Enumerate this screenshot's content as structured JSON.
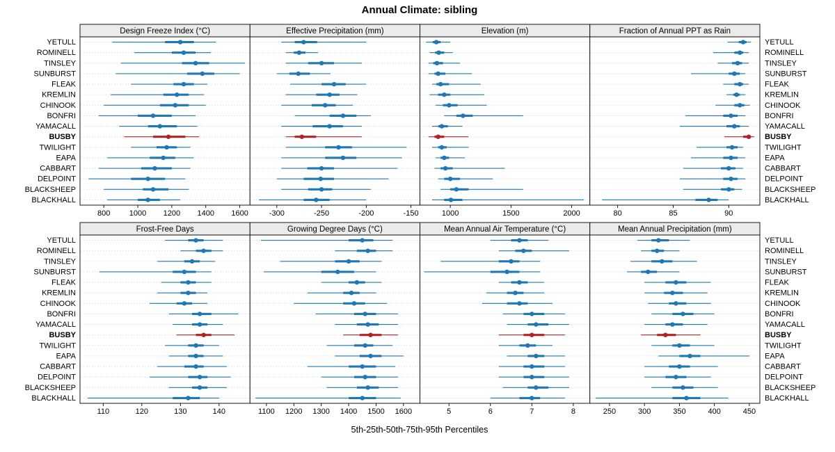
{
  "title": "Annual Climate: sibling",
  "xlabel": "5th-25th-50th-75th-95th Percentiles",
  "percentile_labels": [
    "5th",
    "25th",
    "50th",
    "75th",
    "95th"
  ],
  "stations": [
    "YETULL",
    "ROMINELL",
    "TINSLEY",
    "SUNBURST",
    "FLEAK",
    "KREMLIN",
    "CHINOOK",
    "BONFRI",
    "YAMACALL",
    "BUSBY",
    "TWILIGHT",
    "EAPA",
    "CABBART",
    "DELPOINT",
    "BLACKSHEEP",
    "BLACKHALL"
  ],
  "highlight_station": "BUSBY",
  "colors": {
    "series": "#1f77b4",
    "highlight": "#b22222",
    "strip_bg": "#ebebeb",
    "grid": "#d9d9d9",
    "border": "#000000",
    "text": "#000000"
  },
  "chart_data": [
    {
      "type": "dot-interval",
      "title": "Design Freeze Index (°C)",
      "row": 0,
      "col": 0,
      "xlim": [
        660,
        1660
      ],
      "ticks": [
        800,
        1000,
        1200,
        1400,
        1600
      ],
      "values": [
        [
          850,
          1160,
          1250,
          1330,
          1460
        ],
        [
          980,
          1200,
          1270,
          1340,
          1430
        ],
        [
          900,
          1260,
          1340,
          1420,
          1630
        ],
        [
          870,
          1290,
          1380,
          1450,
          1600
        ],
        [
          960,
          1210,
          1270,
          1330,
          1410
        ],
        [
          840,
          1150,
          1230,
          1300,
          1390
        ],
        [
          800,
          1130,
          1220,
          1300,
          1400
        ],
        [
          770,
          1000,
          1090,
          1200,
          1340
        ],
        [
          890,
          1060,
          1130,
          1230,
          1350
        ],
        [
          920,
          1090,
          1180,
          1280,
          1360
        ],
        [
          960,
          1110,
          1170,
          1230,
          1310
        ],
        [
          820,
          1070,
          1150,
          1220,
          1330
        ],
        [
          770,
          1020,
          1100,
          1200,
          1310
        ],
        [
          710,
          960,
          1060,
          1160,
          1280
        ],
        [
          800,
          1030,
          1090,
          1180,
          1300
        ],
        [
          820,
          1000,
          1060,
          1130,
          1250
        ]
      ]
    },
    {
      "type": "dot-interval",
      "title": "Effective Precipitation (mm)",
      "row": 0,
      "col": 1,
      "xlim": [
        -330,
        -140
      ],
      "ticks": [
        -300,
        -250,
        -200,
        -150
      ],
      "values": [
        [
          -295,
          -280,
          -270,
          -255,
          -200
        ],
        [
          -290,
          -281,
          -275,
          -268,
          -254
        ],
        [
          -290,
          -265,
          -250,
          -236,
          -205
        ],
        [
          -300,
          -286,
          -276,
          -263,
          -240
        ],
        [
          -285,
          -250,
          -236,
          -223,
          -200
        ],
        [
          -290,
          -256,
          -241,
          -230,
          -210
        ],
        [
          -295,
          -261,
          -246,
          -234,
          -215
        ],
        [
          -280,
          -241,
          -226,
          -211,
          -195
        ],
        [
          -295,
          -260,
          -241,
          -226,
          -205
        ],
        [
          -290,
          -280,
          -272,
          -256,
          -205
        ],
        [
          -290,
          -246,
          -231,
          -216,
          -155
        ],
        [
          -295,
          -246,
          -226,
          -211,
          -160
        ],
        [
          -295,
          -266,
          -250,
          -236,
          -165
        ],
        [
          -300,
          -270,
          -251,
          -236,
          -175
        ],
        [
          -295,
          -265,
          -250,
          -238,
          -195
        ],
        [
          -320,
          -270,
          -256,
          -241,
          -200
        ]
      ]
    },
    {
      "type": "dot-interval",
      "title": "Elevation (m)",
      "row": 0,
      "col": 2,
      "xlim": [
        750,
        2150
      ],
      "ticks": [
        1000,
        1500,
        2000
      ],
      "values": [
        [
          800,
          855,
          885,
          920,
          1000
        ],
        [
          830,
          875,
          905,
          950,
          1020
        ],
        [
          820,
          860,
          890,
          940,
          1080
        ],
        [
          820,
          870,
          900,
          960,
          1180
        ],
        [
          850,
          885,
          920,
          990,
          1250
        ],
        [
          830,
          900,
          950,
          1000,
          1280
        ],
        [
          880,
          940,
          990,
          1060,
          1300
        ],
        [
          950,
          1050,
          1105,
          1185,
          1600
        ],
        [
          850,
          900,
          930,
          980,
          1100
        ],
        [
          820,
          870,
          900,
          950,
          1150
        ],
        [
          850,
          900,
          930,
          970,
          1150
        ],
        [
          880,
          920,
          950,
          990,
          1120
        ],
        [
          870,
          920,
          960,
          1020,
          1450
        ],
        [
          900,
          950,
          1000,
          1080,
          1350
        ],
        [
          920,
          1000,
          1050,
          1150,
          1600
        ],
        [
          850,
          950,
          1005,
          1100,
          2100
        ]
      ]
    },
    {
      "type": "dot-interval",
      "title": "Fraction of Annual PPT as Rain",
      "row": 0,
      "col": 3,
      "xlim": [
        77.5,
        92.8
      ],
      "ticks": [
        80,
        85,
        90
      ],
      "values": [
        [
          89.9,
          90.9,
          91.3,
          91.6,
          92.0
        ],
        [
          88.6,
          90.5,
          91.0,
          91.3,
          91.8
        ],
        [
          89.0,
          90.3,
          90.8,
          91.2,
          91.8
        ],
        [
          86.6,
          90.0,
          90.5,
          91.0,
          91.5
        ],
        [
          89.5,
          90.5,
          91.0,
          91.3,
          91.8
        ],
        [
          89.8,
          90.4,
          90.7,
          91.0,
          91.5
        ],
        [
          88.8,
          90.5,
          91.0,
          91.4,
          91.9
        ],
        [
          86.1,
          89.5,
          90.2,
          90.8,
          91.5
        ],
        [
          85.6,
          89.8,
          90.5,
          91.0,
          91.8
        ],
        [
          89.6,
          91.3,
          91.8,
          92.0,
          92.3
        ],
        [
          87.1,
          89.8,
          90.3,
          90.8,
          91.3
        ],
        [
          86.6,
          89.5,
          90.2,
          90.8,
          91.5
        ],
        [
          85.9,
          89.3,
          90.0,
          90.6,
          91.3
        ],
        [
          85.6,
          89.5,
          90.2,
          90.8,
          91.5
        ],
        [
          85.9,
          89.3,
          90.0,
          90.5,
          91.2
        ],
        [
          78.6,
          87.0,
          88.2,
          89.0,
          90.0
        ]
      ]
    },
    {
      "type": "dot-interval",
      "title": "Frost-Free Days",
      "row": 1,
      "col": 0,
      "xlim": [
        104,
        148
      ],
      "ticks": [
        110,
        120,
        130,
        140
      ],
      "values": [
        [
          126,
          132,
          134,
          136,
          141
        ],
        [
          130,
          134,
          136,
          138,
          141
        ],
        [
          124,
          131,
          133,
          135,
          139
        ],
        [
          109,
          128,
          131,
          134,
          138
        ],
        [
          125,
          130,
          132,
          134,
          138
        ],
        [
          124,
          130,
          132,
          134,
          137
        ],
        [
          122,
          129,
          131,
          133,
          137
        ],
        [
          127,
          133,
          135,
          138,
          145
        ],
        [
          128,
          133,
          135,
          137,
          141
        ],
        [
          129,
          134,
          136,
          138,
          144
        ],
        [
          126,
          132,
          134,
          136,
          140
        ],
        [
          127,
          132,
          134,
          136,
          141
        ],
        [
          124,
          131,
          134,
          136,
          142
        ],
        [
          122,
          132,
          135,
          137,
          143
        ],
        [
          127,
          133,
          135,
          137,
          142
        ],
        [
          106,
          128,
          132,
          135,
          140
        ]
      ]
    },
    {
      "type": "dot-interval",
      "title": "Growing Degree Days (°C)",
      "row": 1,
      "col": 1,
      "xlim": [
        1040,
        1660
      ],
      "ticks": [
        1100,
        1200,
        1300,
        1400,
        1500,
        1600
      ],
      "values": [
        [
          1080,
          1400,
          1450,
          1490,
          1560
        ],
        [
          1350,
          1430,
          1470,
          1500,
          1560
        ],
        [
          1150,
          1350,
          1400,
          1440,
          1520
        ],
        [
          1090,
          1300,
          1360,
          1420,
          1500
        ],
        [
          1300,
          1400,
          1430,
          1460,
          1520
        ],
        [
          1250,
          1380,
          1410,
          1440,
          1500
        ],
        [
          1200,
          1380,
          1420,
          1460,
          1540
        ],
        [
          1280,
          1420,
          1460,
          1500,
          1580
        ],
        [
          1350,
          1430,
          1470,
          1510,
          1580
        ],
        [
          1380,
          1440,
          1480,
          1520,
          1580
        ],
        [
          1320,
          1420,
          1460,
          1490,
          1560
        ],
        [
          1350,
          1440,
          1480,
          1520,
          1600
        ],
        [
          1250,
          1400,
          1450,
          1500,
          1570
        ],
        [
          1300,
          1420,
          1460,
          1500,
          1580
        ],
        [
          1320,
          1430,
          1470,
          1510,
          1580
        ],
        [
          1060,
          1400,
          1450,
          1500,
          1590
        ]
      ]
    },
    {
      "type": "dot-interval",
      "title": "Mean Annual Air Temperature (°C)",
      "row": 1,
      "col": 2,
      "xlim": [
        4.3,
        8.4
      ],
      "ticks": [
        5,
        6,
        7,
        8
      ],
      "values": [
        [
          6.0,
          6.5,
          6.7,
          6.9,
          7.4
        ],
        [
          6.2,
          6.6,
          6.8,
          7.0,
          7.9
        ],
        [
          4.8,
          6.2,
          6.5,
          6.7,
          7.2
        ],
        [
          4.4,
          6.0,
          6.4,
          6.7,
          7.2
        ],
        [
          6.2,
          6.5,
          6.7,
          6.9,
          7.3
        ],
        [
          5.9,
          6.4,
          6.6,
          6.8,
          7.3
        ],
        [
          5.8,
          6.4,
          6.7,
          6.9,
          7.5
        ],
        [
          6.3,
          6.8,
          7.0,
          7.3,
          7.8
        ],
        [
          6.4,
          6.9,
          7.1,
          7.4,
          7.9
        ],
        [
          6.2,
          6.8,
          7.0,
          7.3,
          7.8
        ],
        [
          6.2,
          6.7,
          6.9,
          7.1,
          7.5
        ],
        [
          6.4,
          6.9,
          7.1,
          7.3,
          7.8
        ],
        [
          6.2,
          6.8,
          7.0,
          7.3,
          7.8
        ],
        [
          6.2,
          6.8,
          7.0,
          7.3,
          7.9
        ],
        [
          6.3,
          6.9,
          7.1,
          7.4,
          7.9
        ],
        [
          6.0,
          6.7,
          7.0,
          7.2,
          7.8
        ]
      ]
    },
    {
      "type": "dot-interval",
      "title": "Mean Annual Precipitation (mm)",
      "row": 1,
      "col": 3,
      "xlim": [
        222,
        465
      ],
      "ticks": [
        250,
        300,
        350,
        400,
        450
      ],
      "values": [
        [
          290,
          310,
          320,
          335,
          365
        ],
        [
          295,
          310,
          318,
          328,
          350
        ],
        [
          280,
          310,
          325,
          340,
          375
        ],
        [
          275,
          295,
          305,
          318,
          350
        ],
        [
          300,
          330,
          345,
          360,
          395
        ],
        [
          300,
          328,
          340,
          355,
          390
        ],
        [
          305,
          335,
          345,
          360,
          395
        ],
        [
          310,
          340,
          355,
          370,
          400
        ],
        [
          300,
          330,
          340,
          355,
          390
        ],
        [
          295,
          318,
          330,
          345,
          380
        ],
        [
          310,
          340,
          350,
          365,
          400
        ],
        [
          320,
          350,
          365,
          380,
          450
        ],
        [
          300,
          335,
          350,
          365,
          405
        ],
        [
          300,
          330,
          345,
          360,
          395
        ],
        [
          310,
          340,
          355,
          370,
          405
        ],
        [
          230,
          340,
          360,
          380,
          420
        ]
      ]
    }
  ]
}
